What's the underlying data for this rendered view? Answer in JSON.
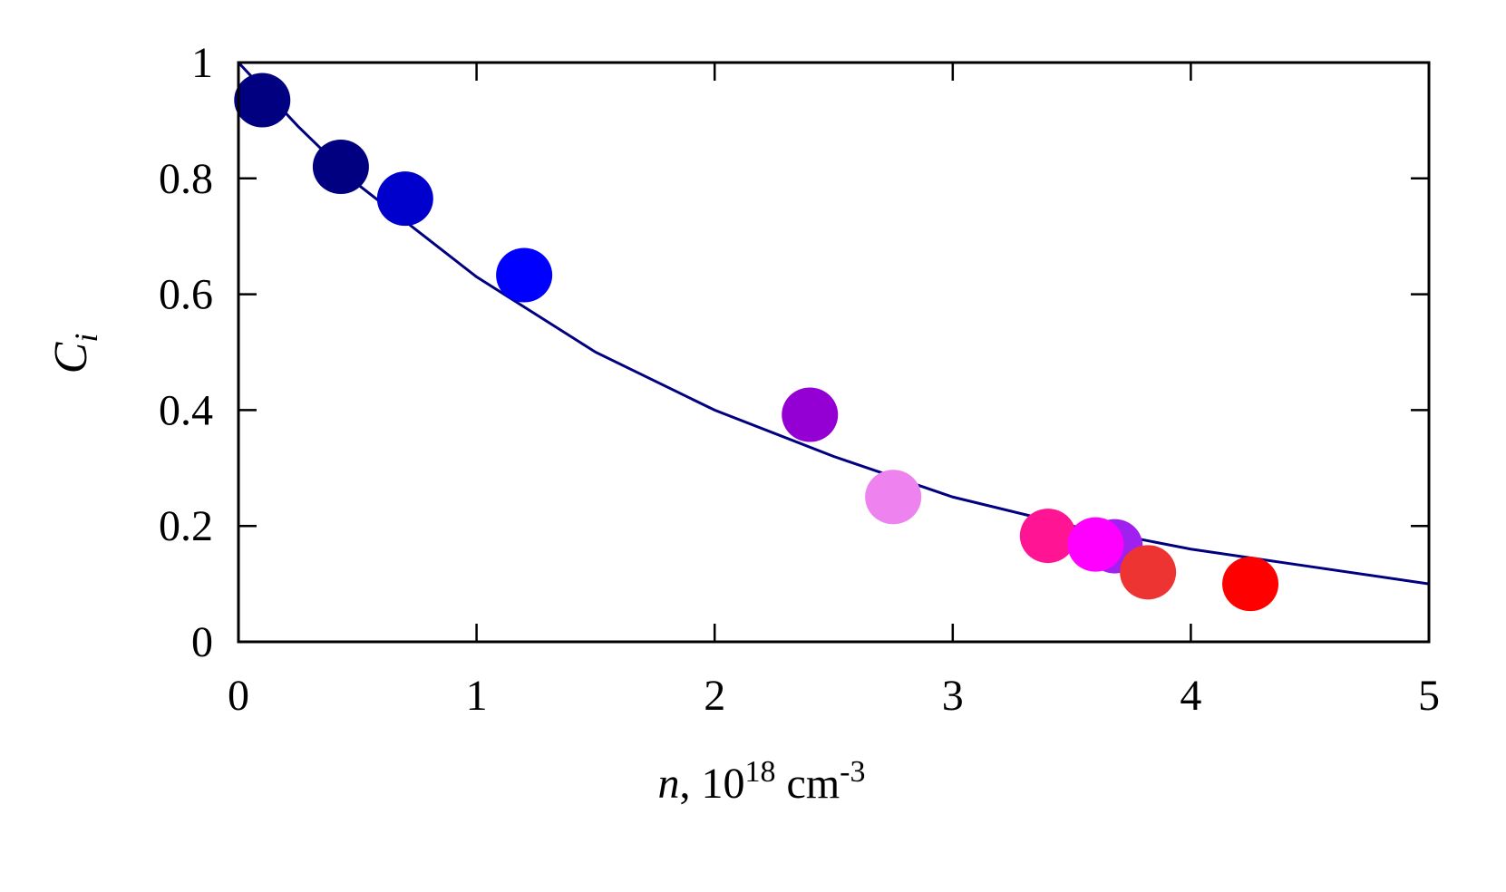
{
  "chart_data": {
    "type": "scatter",
    "x_label": [
      "n",
      ", 10",
      "18",
      " cm",
      "-3"
    ],
    "y_label": [
      "C",
      "i"
    ],
    "x": [
      0.1,
      0.43,
      0.7,
      1.2,
      2.4,
      2.75,
      3.4,
      3.68,
      3.6,
      3.82,
      4.25
    ],
    "values": [
      0.935,
      0.82,
      0.765,
      0.633,
      0.392,
      0.25,
      0.183,
      0.165,
      0.168,
      0.12,
      0.1
    ],
    "colors": [
      "#000080",
      "#000080",
      "#0000cd",
      "#0000ff",
      "#9400d3",
      "#ee82ee",
      "#ff1493",
      "#a020f0",
      "#ff00ff",
      "#ee3333",
      "#ff0000"
    ],
    "fit_line": {
      "color": "#000080",
      "x": [
        0,
        0.25,
        0.5,
        0.75,
        1,
        1.5,
        2,
        2.5,
        3,
        3.5,
        4,
        4.5,
        5
      ],
      "values": [
        1,
        0.89,
        0.79,
        0.71,
        0.63,
        0.5,
        0.4,
        0.32,
        0.25,
        0.2,
        0.16,
        0.13,
        0.1
      ]
    },
    "xlim": [
      0,
      5
    ],
    "ylim": [
      0,
      1
    ],
    "xticks": [
      0,
      1,
      2,
      3,
      4,
      5
    ],
    "yticks": [
      0,
      0.2,
      0.4,
      0.6,
      0.8,
      1
    ]
  }
}
